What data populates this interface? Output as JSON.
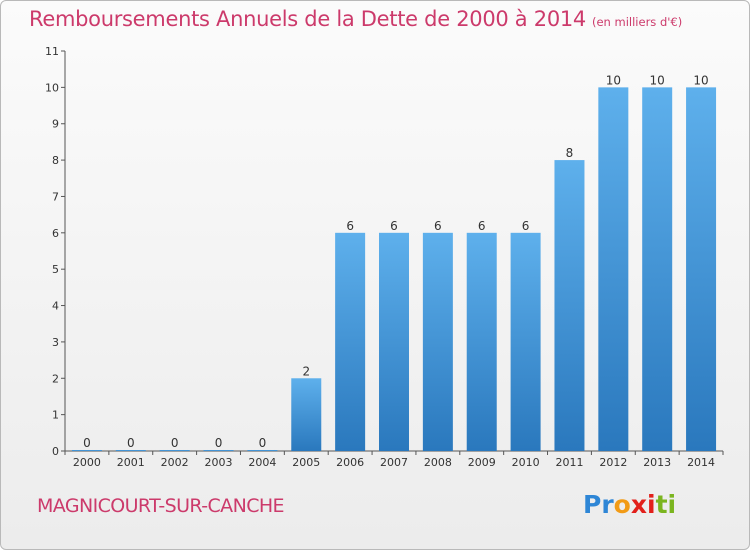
{
  "chart_title": {
    "main": "Remboursements Annuels de la Dette de 2000 à 2014",
    "unit": "(en milliers d'€)"
  },
  "town_name": "MAGNICOURT-SUR-CANCHE",
  "logo": {
    "text": "Proxiti",
    "colors": [
      "#2e86d6",
      "#f29b16",
      "#e2201b",
      "#7bb51f"
    ]
  },
  "chart_data": {
    "type": "bar",
    "title": "Remboursements Annuels de la Dette de 2000 à 2014",
    "subtitle": "(en milliers d'€)",
    "xlabel": "",
    "ylabel": "",
    "categories": [
      "2000",
      "2001",
      "2002",
      "2003",
      "2004",
      "2005",
      "2006",
      "2007",
      "2008",
      "2009",
      "2010",
      "2011",
      "2012",
      "2013",
      "2014"
    ],
    "values": [
      0,
      0,
      0,
      0,
      0,
      2,
      6,
      6,
      6,
      6,
      6,
      8,
      10,
      10,
      10
    ],
    "ylim": [
      0,
      11
    ],
    "yticks": [
      0,
      1,
      2,
      3,
      4,
      5,
      6,
      7,
      8,
      9,
      10,
      11
    ],
    "grid": false,
    "legend": "none",
    "bar_color_top": "#5eb0ec",
    "bar_color_bottom": "#2a78bd"
  }
}
